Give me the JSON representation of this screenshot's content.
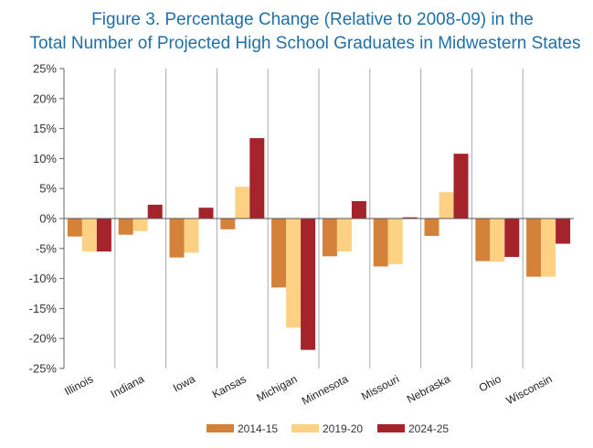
{
  "chart_data": {
    "type": "bar",
    "title_line1": "Figure 3.      Percentage Change (Relative to 2008-09) in the",
    "title_line2": "Total Number of Projected High School Graduates in Midwestern States",
    "categories": [
      "Illinois",
      "Indiana",
      "Iowa",
      "Kansas",
      "Michigan",
      "Minnesota",
      "Missouri",
      "Nebraska",
      "Ohio",
      "Wisconsin"
    ],
    "series": [
      {
        "name": "2014-15",
        "color": "#d4823a",
        "values": [
          -3.0,
          -2.7,
          -6.5,
          -1.8,
          -11.5,
          -6.3,
          -8.0,
          -2.9,
          -7.1,
          -9.7
        ]
      },
      {
        "name": "2019-20",
        "color": "#fcd183",
        "values": [
          -5.5,
          -2.1,
          -5.7,
          5.3,
          -18.2,
          -5.5,
          -7.6,
          4.4,
          -7.2,
          -9.7
        ]
      },
      {
        "name": "2024-25",
        "color": "#a5232a",
        "values": [
          -5.5,
          2.3,
          1.8,
          13.4,
          -21.9,
          2.9,
          0.2,
          10.8,
          -6.4,
          -4.2
        ]
      }
    ],
    "yticks": [
      "25%",
      "20%",
      "15%",
      "10%",
      "5%",
      "0%",
      "-5%",
      "-10%",
      "-15%",
      "-20%",
      "-25%"
    ],
    "ylim": [
      -25,
      25
    ],
    "legend_position": "bottom-center",
    "grid": "vertical separators"
  }
}
